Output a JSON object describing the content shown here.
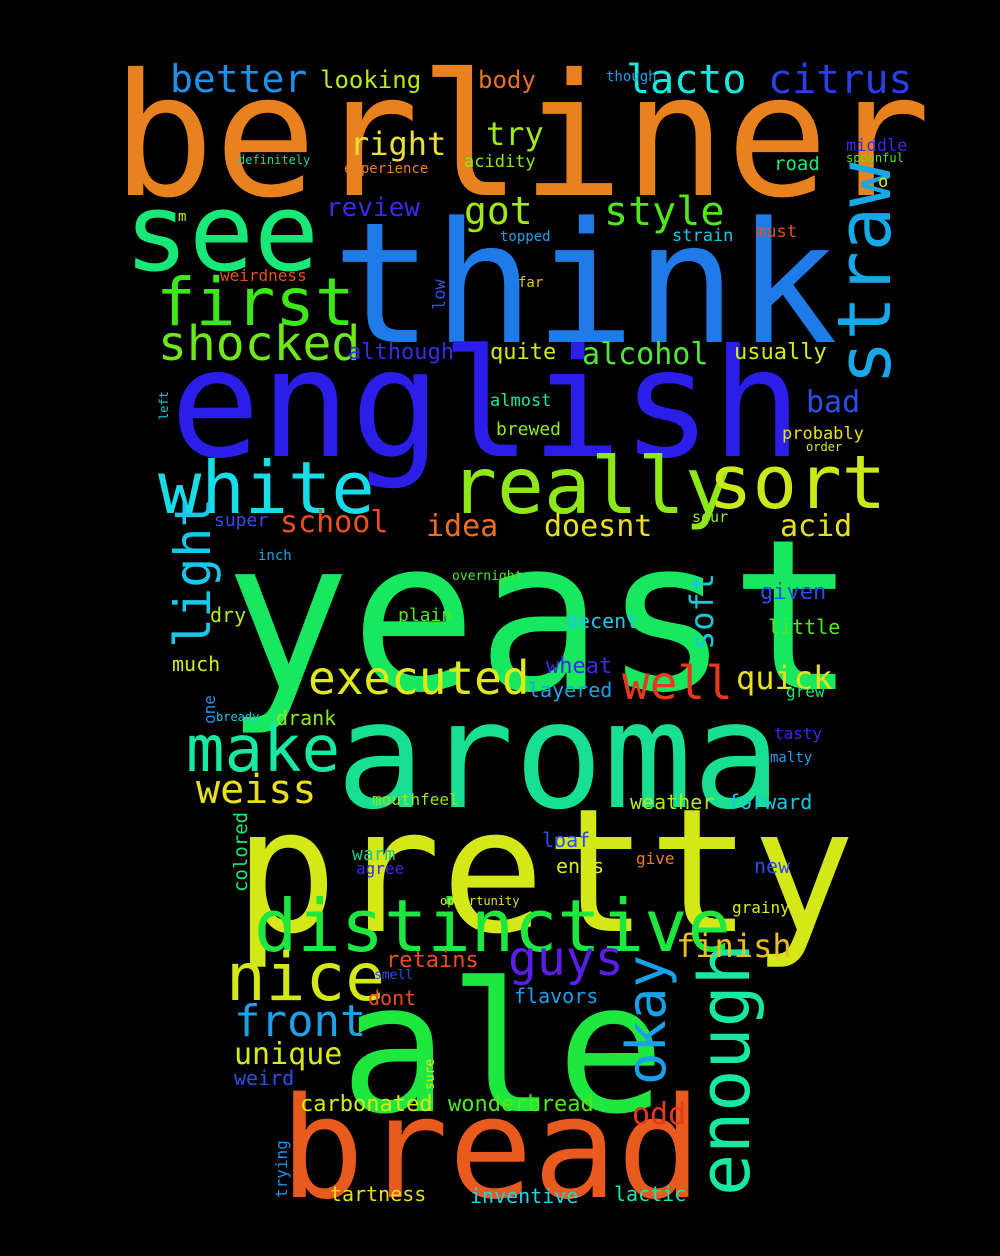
{
  "words": [
    {
      "text": "berliner",
      "color": "#e8821e"
    },
    {
      "text": "think",
      "color": "#1f7be8"
    },
    {
      "text": "english",
      "color": "#2b1ee8"
    },
    {
      "text": "yeast",
      "color": "#18e860"
    },
    {
      "text": "aroma",
      "color": "#18e090"
    },
    {
      "text": "pretty",
      "color": "#d4e818"
    },
    {
      "text": "ale",
      "color": "#1ee840"
    },
    {
      "text": "bread",
      "color": "#e85a1e"
    },
    {
      "text": "see",
      "color": "#18e878"
    },
    {
      "text": "really",
      "color": "#8ee818"
    },
    {
      "text": "white",
      "color": "#18dce8"
    },
    {
      "text": "sort",
      "color": "#cce818"
    },
    {
      "text": "distinctive",
      "color": "#1ee840"
    },
    {
      "text": "straw",
      "color": "#18a8e8"
    },
    {
      "text": "first",
      "color": "#3ce818"
    },
    {
      "text": "enough",
      "color": "#18e8a0"
    },
    {
      "text": "nice",
      "color": "#d4e818"
    },
    {
      "text": "make",
      "color": "#18e8a0"
    },
    {
      "text": "shocked",
      "color": "#6ee818"
    },
    {
      "text": "executed",
      "color": "#e0e818"
    },
    {
      "text": "okay",
      "color": "#18a0e8"
    },
    {
      "text": "well",
      "color": "#e8381e"
    },
    {
      "text": "guys",
      "color": "#5a1ee8"
    },
    {
      "text": "light",
      "color": "#18c8e8"
    },
    {
      "text": "front",
      "color": "#1ea0e8"
    },
    {
      "text": "weiss",
      "color": "#e8e01e"
    },
    {
      "text": "lacto",
      "color": "#18e8e0"
    },
    {
      "text": "citrus",
      "color": "#2b3ee8"
    },
    {
      "text": "better",
      "color": "#1e90e8"
    },
    {
      "text": "style",
      "color": "#50e818"
    },
    {
      "text": "got",
      "color": "#a0e818"
    },
    {
      "text": "right",
      "color": "#e8e038"
    },
    {
      "text": "try",
      "color": "#a0e818"
    },
    {
      "text": "looking",
      "color": "#b8e818"
    },
    {
      "text": "body",
      "color": "#e8721e"
    },
    {
      "text": "finish",
      "color": "#e8c01e"
    },
    {
      "text": "alcohol",
      "color": "#50e838"
    },
    {
      "text": "doesnt",
      "color": "#e8e01e"
    },
    {
      "text": "school",
      "color": "#e8501e"
    },
    {
      "text": "idea",
      "color": "#e8701e"
    },
    {
      "text": "acid",
      "color": "#e8e01e"
    },
    {
      "text": "quick",
      "color": "#e8e01e"
    },
    {
      "text": "unique",
      "color": "#d8e818"
    },
    {
      "text": "soft",
      "color": "#18c8d8"
    },
    {
      "text": "review",
      "color": "#3a2be8"
    },
    {
      "text": "bad",
      "color": "#2b50e8"
    },
    {
      "text": "odd",
      "color": "#e8381e"
    },
    {
      "text": "carbonated",
      "color": "#d8e818"
    },
    {
      "text": "wonderbread",
      "color": "#50e818"
    },
    {
      "text": "tartness",
      "color": "#e8e01e"
    },
    {
      "text": "inventive",
      "color": "#18d8e8"
    },
    {
      "text": "lactic",
      "color": "#18e8b0"
    },
    {
      "text": "quite",
      "color": "#d8e818"
    },
    {
      "text": "usually",
      "color": "#d8e818"
    },
    {
      "text": "although",
      "color": "#3a2be8"
    },
    {
      "text": "retains",
      "color": "#e8501e"
    },
    {
      "text": "flavors",
      "color": "#1ea0e8"
    },
    {
      "text": "weird",
      "color": "#2b50e8"
    },
    {
      "text": "dont",
      "color": "#e8501e"
    },
    {
      "text": "super",
      "color": "#2b50e8"
    },
    {
      "text": "wheat",
      "color": "#3a2be8"
    },
    {
      "text": "layered",
      "color": "#1ea0e8"
    },
    {
      "text": "given",
      "color": "#2b50e8"
    },
    {
      "text": "little",
      "color": "#50e818"
    },
    {
      "text": "decent",
      "color": "#18c8e8"
    },
    {
      "text": "dry",
      "color": "#b8e818"
    },
    {
      "text": "much",
      "color": "#d8e818"
    },
    {
      "text": "drank",
      "color": "#90e818"
    },
    {
      "text": "mouthfeel",
      "color": "#90e818"
    },
    {
      "text": "weather",
      "color": "#b8e818"
    },
    {
      "text": "forward",
      "color": "#18c8e8"
    },
    {
      "text": "loaf",
      "color": "#2b50e8"
    },
    {
      "text": "ends",
      "color": "#d8e818"
    },
    {
      "text": "warm",
      "color": "#18c890"
    },
    {
      "text": "new",
      "color": "#2b50e8"
    },
    {
      "text": "plain",
      "color": "#50e818"
    },
    {
      "text": "brewed",
      "color": "#90e818"
    },
    {
      "text": "almost",
      "color": "#18e8a0"
    },
    {
      "text": "probably",
      "color": "#e8e01e"
    },
    {
      "text": "acidity",
      "color": "#90e818"
    },
    {
      "text": "road",
      "color": "#18e878"
    },
    {
      "text": "middle",
      "color": "#3a2be8"
    },
    {
      "text": "strain",
      "color": "#18c8e8"
    },
    {
      "text": "must",
      "color": "#e8501e"
    },
    {
      "text": "weirdness",
      "color": "#e8501e"
    },
    {
      "text": "experience",
      "color": "#e8821e"
    },
    {
      "text": "definitely",
      "color": "#18d8a0"
    },
    {
      "text": "though",
      "color": "#1ea0e8"
    },
    {
      "text": "spoonful",
      "color": "#50e818"
    },
    {
      "text": "topped",
      "color": "#1ea0e8"
    },
    {
      "text": "far",
      "color": "#e8c01e"
    },
    {
      "text": "low",
      "color": "#2b50e8"
    },
    {
      "text": "sour",
      "color": "#90e818"
    },
    {
      "text": "order",
      "color": "#d8e818"
    },
    {
      "text": "overnight",
      "color": "#50e818"
    },
    {
      "text": "inch",
      "color": "#1ea0e8"
    },
    {
      "text": "bready",
      "color": "#18c8e8"
    },
    {
      "text": "one",
      "color": "#1e90e8"
    },
    {
      "text": "grew",
      "color": "#18e878"
    },
    {
      "text": "tasty",
      "color": "#3a2be8"
    },
    {
      "text": "malty",
      "color": "#1ea0e8"
    },
    {
      "text": "colored",
      "color": "#18e878"
    },
    {
      "text": "agree",
      "color": "#3a2be8"
    },
    {
      "text": "give",
      "color": "#e8821e"
    },
    {
      "text": "opportunity",
      "color": "#d8e818"
    },
    {
      "text": "grainy",
      "color": "#d8e818"
    },
    {
      "text": "smell",
      "color": "#2b50e8"
    },
    {
      "text": "sure",
      "color": "#d8e818"
    },
    {
      "text": "trying",
      "color": "#1e90e8"
    },
    {
      "text": "left",
      "color": "#18c8e8"
    },
    {
      "text": "m",
      "color": "#d8e818"
    },
    {
      "text": "o",
      "color": "#e8e01e"
    }
  ]
}
